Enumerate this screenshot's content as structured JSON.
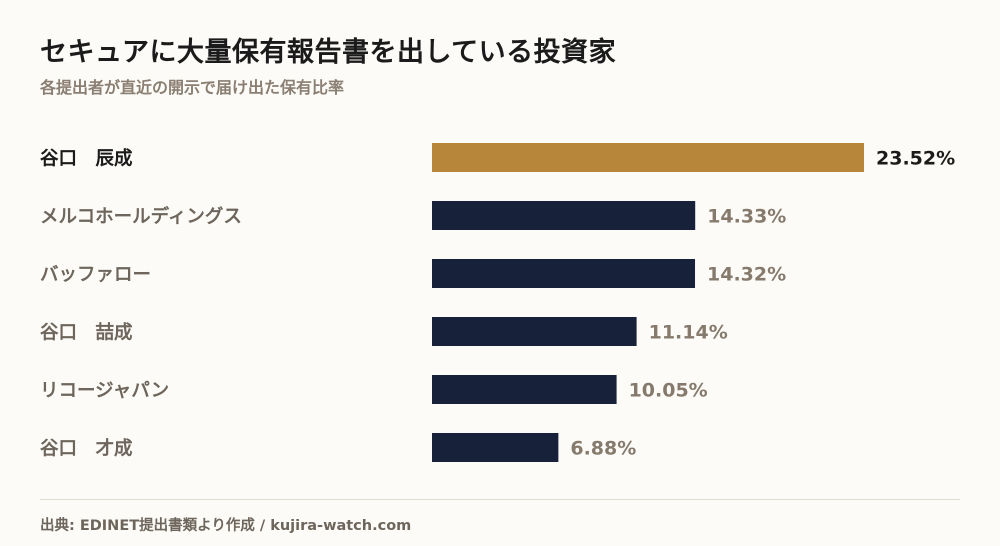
{
  "title": "セキュアに大量保有報告書を出している投資家",
  "subtitle": "各提出者が直近の開示で届け出た保有比率",
  "source": "出典: EDINET提出書類より作成 / kujira-watch.com",
  "colors": {
    "highlight": "#b8863b",
    "bar": "#17213a",
    "label_dark": "#1b1b1b",
    "label_muted": "#6e665c",
    "value_muted": "#857a6c"
  },
  "chart_data": {
    "type": "bar",
    "orientation": "horizontal",
    "categories": [
      "谷口　辰成",
      "メルコホールディングス",
      "バッファロー",
      "谷口　喆成",
      "リコージャパン",
      "谷口　才成"
    ],
    "values": [
      23.52,
      14.33,
      14.32,
      11.14,
      10.05,
      6.88
    ],
    "value_labels": [
      "23.52%",
      "14.33%",
      "14.32%",
      "11.14%",
      "10.05%",
      "6.88%"
    ],
    "unit": "%",
    "highlight_index": 0,
    "xlim": [
      0,
      23.52
    ],
    "grid": false,
    "legend": "none"
  }
}
